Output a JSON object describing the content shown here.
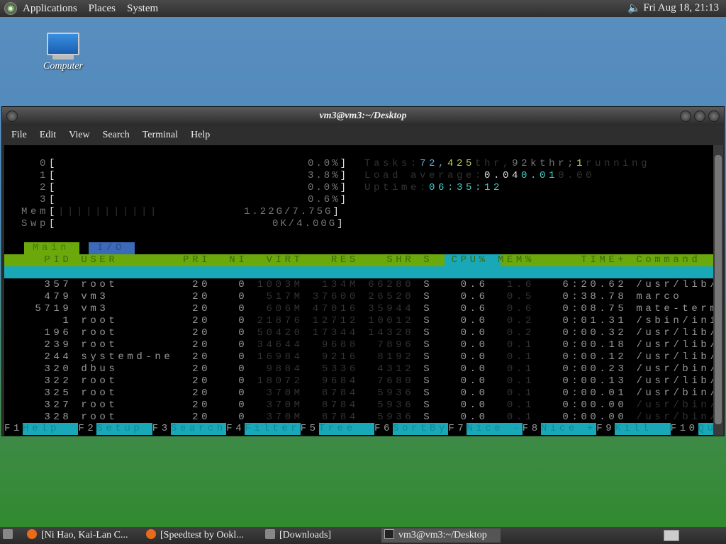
{
  "top_panel": {
    "menus": [
      "Applications",
      "Places",
      "System"
    ],
    "clock": "Fri Aug 18, 21:13"
  },
  "desktop": {
    "icons": [
      {
        "label": "Computer"
      }
    ]
  },
  "window": {
    "title": "vm3@vm3:~/Desktop",
    "menu": [
      "File",
      "Edit",
      "View",
      "Search",
      "Terminal",
      "Help"
    ]
  },
  "htop": {
    "cpus": [
      {
        "id": "0",
        "pct": "0.0%"
      },
      {
        "id": "1",
        "pct": "3.8%"
      },
      {
        "id": "2",
        "pct": "0.0%"
      },
      {
        "id": "3",
        "pct": "0.6%"
      }
    ],
    "mem": {
      "label": "Mem",
      "value": "1.22G/7.75G",
      "bars": "|||||||||||"
    },
    "swp": {
      "label": "Swp",
      "value": "0K/4.00G"
    },
    "tasks": {
      "label": "Tasks:",
      "tasks": "72,",
      "thr": "425",
      "thr_label": "thr,",
      "kthr": "92",
      "kthr_label": "kthr;",
      "running": "1",
      "running_label": "running"
    },
    "load": {
      "label": "Load average:",
      "v1": "0.04",
      "v5": "0.01",
      "v15": "0.00"
    },
    "uptime": {
      "label": "Uptime:",
      "value": "06:35:12"
    },
    "tabs": [
      "Main",
      "I/O"
    ],
    "columns": [
      "PID",
      "USER",
      "PRI",
      "NI",
      "VIRT",
      "RES",
      "SHR",
      "S",
      "CPU%",
      "MEM%",
      "TIME+",
      "Command"
    ],
    "sort_column": "CPU%",
    "rows": [
      [
        "357",
        "root",
        "20",
        "0",
        "1003M",
        "134M",
        "66280",
        "S",
        "0.6",
        "1.6",
        "6:20.62",
        "/usr/lib/X"
      ],
      [
        "479",
        "vm3",
        "20",
        "0",
        "517M",
        "37600",
        "26520",
        "S",
        "0.6",
        "0.5",
        "0:38.78",
        "marco"
      ],
      [
        "5719",
        "vm3",
        "20",
        "0",
        "606M",
        "47016",
        "35944",
        "S",
        "0.6",
        "0.6",
        "0:08.75",
        "mate-termi"
      ],
      [
        "1",
        "root",
        "20",
        "0",
        "21876",
        "12712",
        "10012",
        "S",
        "0.0",
        "0.2",
        "0:01.31",
        "/sbin/init"
      ],
      [
        "196",
        "root",
        "20",
        "0",
        "50420",
        "17344",
        "14328",
        "S",
        "0.0",
        "0.2",
        "0:00.32",
        "/usr/lib/s"
      ],
      [
        "239",
        "root",
        "20",
        "0",
        "34644",
        "9688",
        "7896",
        "S",
        "0.0",
        "0.1",
        "0:00.18",
        "/usr/lib/s"
      ],
      [
        "244",
        "systemd-ne",
        "20",
        "0",
        "16984",
        "9216",
        "8192",
        "S",
        "0.0",
        "0.1",
        "0:00.12",
        "/usr/lib/s"
      ],
      [
        "320",
        "dbus",
        "20",
        "0",
        "9884",
        "5336",
        "4312",
        "S",
        "0.0",
        "0.1",
        "0:00.23",
        "/usr/bin/d"
      ],
      [
        "322",
        "root",
        "20",
        "0",
        "18072",
        "9684",
        "7680",
        "S",
        "0.0",
        "0.1",
        "0:00.13",
        "/usr/lib/s"
      ],
      [
        "325",
        "root",
        "20",
        "0",
        "370M",
        "8784",
        "5936",
        "S",
        "0.0",
        "0.1",
        "0:00.01",
        "/usr/bin/l"
      ],
      [
        "327",
        "root",
        "20",
        "0",
        "370M",
        "8784",
        "5936",
        "S",
        "0.0",
        "0.1",
        "0:00.00",
        "/usr/bin/l"
      ],
      [
        "328",
        "root",
        "20",
        "0",
        "370M",
        "8784",
        "5936",
        "S",
        "0.0",
        "0.1",
        "0:00.00",
        "/usr/bin/l"
      ]
    ],
    "fkeys": [
      [
        "F1",
        "Help"
      ],
      [
        "F2",
        "Setup"
      ],
      [
        "F3",
        "Search"
      ],
      [
        "F4",
        "Filter"
      ],
      [
        "F5",
        "Tree"
      ],
      [
        "F6",
        "SortBy"
      ],
      [
        "F7",
        "Nice -"
      ],
      [
        "F8",
        "Nice +"
      ],
      [
        "F9",
        "Kill"
      ],
      [
        "F10",
        "Quit"
      ]
    ]
  },
  "taskbar": {
    "items": [
      "[Ni Hao, Kai-Lan C...",
      "[Speedtest by Ookl...",
      "[Downloads]",
      "vm3@vm3:~/Desktop"
    ]
  },
  "colors": {
    "header_green": "#6aa80c",
    "selection_cyan": "#18a8b8",
    "tab_blue": "#3a6ab8"
  }
}
